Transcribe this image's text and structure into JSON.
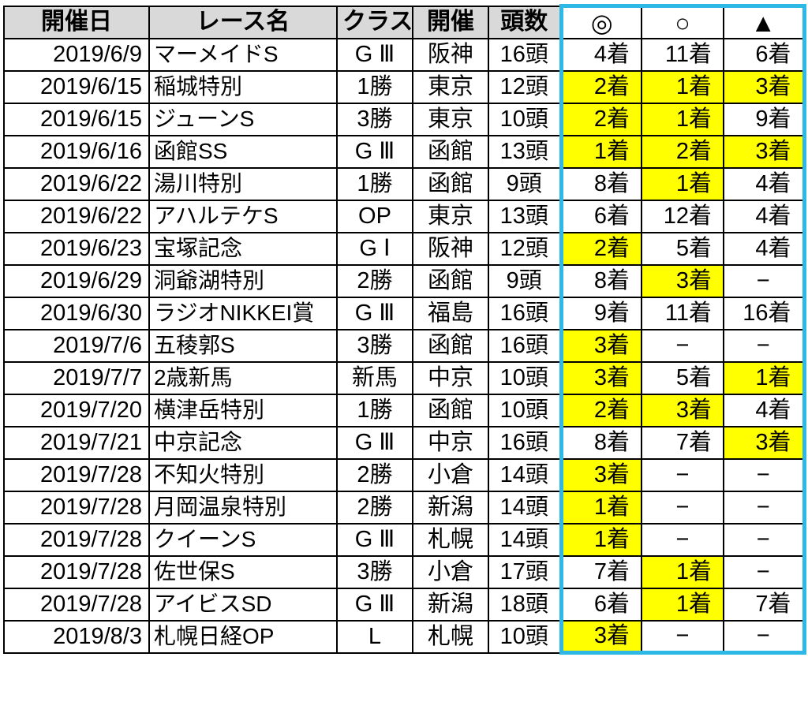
{
  "colors": {
    "result_box_border": "#2eb8e6",
    "highlight": "#ffff00",
    "header_bg": "#d9d9d9",
    "grid_line": "#000000",
    "text": "#000000"
  },
  "chart_data": {
    "type": "table",
    "columns": [
      "開催日",
      "レース名",
      "クラス",
      "開催",
      "頭数",
      "◎",
      "○",
      "▲"
    ],
    "rows": [
      {
        "date": "2019/6/9",
        "race": "マーメイドS",
        "race_class": "G Ⅲ",
        "venue": "阪神",
        "field_size": "16頭",
        "results": [
          {
            "mark": "◎",
            "finish": "4着",
            "highlight": false
          },
          {
            "mark": "○",
            "finish": "11着",
            "highlight": false
          },
          {
            "mark": "▲",
            "finish": "6着",
            "highlight": false
          }
        ]
      },
      {
        "date": "2019/6/15",
        "race": "稲城特別",
        "race_class": "1勝",
        "venue": "東京",
        "field_size": "12頭",
        "results": [
          {
            "mark": "◎",
            "finish": "2着",
            "highlight": true
          },
          {
            "mark": "○",
            "finish": "1着",
            "highlight": true
          },
          {
            "mark": "▲",
            "finish": "3着",
            "highlight": true
          }
        ]
      },
      {
        "date": "2019/6/15",
        "race": "ジューンS",
        "race_class": "3勝",
        "venue": "東京",
        "field_size": "10頭",
        "results": [
          {
            "mark": "◎",
            "finish": "2着",
            "highlight": true
          },
          {
            "mark": "○",
            "finish": "1着",
            "highlight": true
          },
          {
            "mark": "▲",
            "finish": "9着",
            "highlight": false
          }
        ]
      },
      {
        "date": "2019/6/16",
        "race": "函館SS",
        "race_class": "G Ⅲ",
        "venue": "函館",
        "field_size": "13頭",
        "results": [
          {
            "mark": "◎",
            "finish": "1着",
            "highlight": true
          },
          {
            "mark": "○",
            "finish": "2着",
            "highlight": true
          },
          {
            "mark": "▲",
            "finish": "3着",
            "highlight": true
          }
        ]
      },
      {
        "date": "2019/6/22",
        "race": "湯川特別",
        "race_class": "1勝",
        "venue": "函館",
        "field_size": "9頭",
        "results": [
          {
            "mark": "◎",
            "finish": "8着",
            "highlight": false
          },
          {
            "mark": "○",
            "finish": "1着",
            "highlight": true
          },
          {
            "mark": "▲",
            "finish": "4着",
            "highlight": false
          }
        ]
      },
      {
        "date": "2019/6/22",
        "race": "アハルテケS",
        "race_class": "OP",
        "venue": "東京",
        "field_size": "13頭",
        "results": [
          {
            "mark": "◎",
            "finish": "6着",
            "highlight": false
          },
          {
            "mark": "○",
            "finish": "12着",
            "highlight": false
          },
          {
            "mark": "▲",
            "finish": "4着",
            "highlight": false
          }
        ]
      },
      {
        "date": "2019/6/23",
        "race": "宝塚記念",
        "race_class": "G Ⅰ",
        "venue": "阪神",
        "field_size": "12頭",
        "results": [
          {
            "mark": "◎",
            "finish": "2着",
            "highlight": true
          },
          {
            "mark": "○",
            "finish": "5着",
            "highlight": false
          },
          {
            "mark": "▲",
            "finish": "4着",
            "highlight": false
          }
        ]
      },
      {
        "date": "2019/6/29",
        "race": "洞爺湖特別",
        "race_class": "2勝",
        "venue": "函館",
        "field_size": "9頭",
        "results": [
          {
            "mark": "◎",
            "finish": "8着",
            "highlight": false
          },
          {
            "mark": "○",
            "finish": "3着",
            "highlight": true
          },
          {
            "mark": "▲",
            "finish": "−",
            "highlight": false
          }
        ]
      },
      {
        "date": "2019/6/30",
        "race": "ラジオNIKKEI賞",
        "race_class": "G Ⅲ",
        "venue": "福島",
        "field_size": "16頭",
        "results": [
          {
            "mark": "◎",
            "finish": "9着",
            "highlight": false
          },
          {
            "mark": "○",
            "finish": "11着",
            "highlight": false
          },
          {
            "mark": "▲",
            "finish": "16着",
            "highlight": false
          }
        ]
      },
      {
        "date": "2019/7/6",
        "race": "五稜郭S",
        "race_class": "3勝",
        "venue": "函館",
        "field_size": "16頭",
        "results": [
          {
            "mark": "◎",
            "finish": "3着",
            "highlight": true
          },
          {
            "mark": "○",
            "finish": "−",
            "highlight": false
          },
          {
            "mark": "▲",
            "finish": "−",
            "highlight": false
          }
        ]
      },
      {
        "date": "2019/7/7",
        "race": "2歳新馬",
        "race_class": "新馬",
        "venue": "中京",
        "field_size": "10頭",
        "results": [
          {
            "mark": "◎",
            "finish": "3着",
            "highlight": true
          },
          {
            "mark": "○",
            "finish": "5着",
            "highlight": false
          },
          {
            "mark": "▲",
            "finish": "1着",
            "highlight": true
          }
        ]
      },
      {
        "date": "2019/7/20",
        "race": "横津岳特別",
        "race_class": "1勝",
        "venue": "函館",
        "field_size": "10頭",
        "results": [
          {
            "mark": "◎",
            "finish": "2着",
            "highlight": true
          },
          {
            "mark": "○",
            "finish": "3着",
            "highlight": true
          },
          {
            "mark": "▲",
            "finish": "4着",
            "highlight": false
          }
        ]
      },
      {
        "date": "2019/7/21",
        "race": "中京記念",
        "race_class": "G Ⅲ",
        "venue": "中京",
        "field_size": "16頭",
        "results": [
          {
            "mark": "◎",
            "finish": "8着",
            "highlight": false
          },
          {
            "mark": "○",
            "finish": "7着",
            "highlight": false
          },
          {
            "mark": "▲",
            "finish": "3着",
            "highlight": true
          }
        ]
      },
      {
        "date": "2019/7/28",
        "race": "不知火特別",
        "race_class": "2勝",
        "venue": "小倉",
        "field_size": "14頭",
        "results": [
          {
            "mark": "◎",
            "finish": "3着",
            "highlight": true
          },
          {
            "mark": "○",
            "finish": "−",
            "highlight": false
          },
          {
            "mark": "▲",
            "finish": "−",
            "highlight": false
          }
        ]
      },
      {
        "date": "2019/7/28",
        "race": "月岡温泉特別",
        "race_class": "2勝",
        "venue": "新潟",
        "field_size": "14頭",
        "results": [
          {
            "mark": "◎",
            "finish": "1着",
            "highlight": true
          },
          {
            "mark": "○",
            "finish": "−",
            "highlight": false
          },
          {
            "mark": "▲",
            "finish": "−",
            "highlight": false
          }
        ]
      },
      {
        "date": "2019/7/28",
        "race": "クイーンS",
        "race_class": "G Ⅲ",
        "venue": "札幌",
        "field_size": "14頭",
        "results": [
          {
            "mark": "◎",
            "finish": "1着",
            "highlight": true
          },
          {
            "mark": "○",
            "finish": "−",
            "highlight": false
          },
          {
            "mark": "▲",
            "finish": "−",
            "highlight": false
          }
        ]
      },
      {
        "date": "2019/7/28",
        "race": "佐世保S",
        "race_class": "3勝",
        "venue": "小倉",
        "field_size": "17頭",
        "results": [
          {
            "mark": "◎",
            "finish": "7着",
            "highlight": false
          },
          {
            "mark": "○",
            "finish": "1着",
            "highlight": true
          },
          {
            "mark": "▲",
            "finish": "−",
            "highlight": false
          }
        ]
      },
      {
        "date": "2019/7/28",
        "race": "アイビスSD",
        "race_class": "G Ⅲ",
        "venue": "新潟",
        "field_size": "18頭",
        "results": [
          {
            "mark": "◎",
            "finish": "6着",
            "highlight": false
          },
          {
            "mark": "○",
            "finish": "1着",
            "highlight": true
          },
          {
            "mark": "▲",
            "finish": "7着",
            "highlight": false
          }
        ]
      },
      {
        "date": "2019/8/3",
        "race": "札幌日経OP",
        "race_class": "L",
        "venue": "札幌",
        "field_size": "10頭",
        "results": [
          {
            "mark": "◎",
            "finish": "3着",
            "highlight": true
          },
          {
            "mark": "○",
            "finish": "−",
            "highlight": false
          },
          {
            "mark": "▲",
            "finish": "−",
            "highlight": false
          }
        ]
      }
    ]
  }
}
